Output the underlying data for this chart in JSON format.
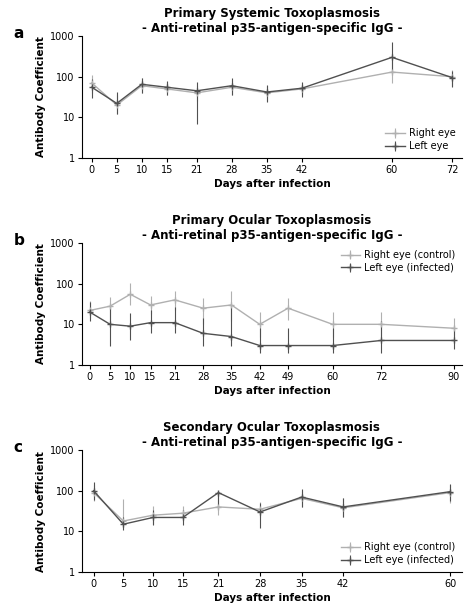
{
  "panel_a": {
    "title1": "Primary Systemic Toxoplasmosis",
    "title2": "- Anti-retinal p35-antigen-specific IgG -",
    "xlabel": "Days after infection",
    "ylabel": "Antibody Coefficient",
    "days": [
      0,
      5,
      10,
      15,
      21,
      28,
      35,
      42,
      60,
      72
    ],
    "right_eye": [
      70,
      20,
      60,
      50,
      40,
      55,
      40,
      50,
      130,
      100
    ],
    "right_eye_err_lo": [
      30,
      8,
      20,
      15,
      15,
      20,
      15,
      15,
      60,
      40
    ],
    "right_eye_err_hi": [
      40,
      15,
      35,
      25,
      20,
      30,
      20,
      20,
      250,
      50
    ],
    "left_eye": [
      55,
      22,
      65,
      55,
      45,
      60,
      42,
      52,
      300,
      95
    ],
    "left_eye_err_lo": [
      25,
      10,
      25,
      20,
      38,
      25,
      18,
      20,
      180,
      40
    ],
    "left_eye_err_hi": [
      35,
      20,
      30,
      25,
      30,
      35,
      22,
      22,
      400,
      45
    ],
    "legend_right": "Right eye",
    "legend_left": "Left eye",
    "legend_loc": "lower right"
  },
  "panel_b": {
    "title1": "Primary Ocular Toxoplasmosis",
    "title2": "- Anti-retinal p35-antigen-specific IgG -",
    "xlabel": "Days after infection",
    "ylabel": "Antibody Coefficient",
    "days": [
      0,
      5,
      10,
      15,
      21,
      28,
      35,
      42,
      49,
      60,
      72,
      90
    ],
    "right_eye": [
      22,
      28,
      55,
      30,
      40,
      25,
      30,
      10,
      25,
      10,
      10,
      8
    ],
    "right_eye_err_lo": [
      8,
      15,
      25,
      12,
      18,
      15,
      18,
      5,
      12,
      5,
      5,
      3
    ],
    "right_eye_err_hi": [
      15,
      20,
      50,
      20,
      25,
      20,
      35,
      10,
      20,
      10,
      10,
      6
    ],
    "left_eye": [
      20,
      10,
      9,
      11,
      11,
      6,
      5,
      3,
      3,
      3,
      4,
      4
    ],
    "left_eye_err_lo": [
      8,
      7,
      5,
      5,
      5,
      3,
      2,
      1,
      1,
      1,
      2,
      1.5
    ],
    "left_eye_err_hi": [
      15,
      20,
      10,
      12,
      15,
      8,
      25,
      5,
      5,
      5,
      8,
      5
    ],
    "legend_right": "Right eye (control)",
    "legend_left": "Left eye (infected)",
    "legend_loc": "upper right"
  },
  "panel_c": {
    "title1": "Secondary Ocular Toxoplasmosis",
    "title2": "- Anti-retinal p35-antigen-specific IgG -",
    "xlabel": "Days after infection",
    "ylabel": "Antibody Coefficient",
    "days": [
      0,
      5,
      10,
      15,
      21,
      28,
      35,
      42,
      60
    ],
    "right_eye": [
      90,
      18,
      25,
      28,
      40,
      35,
      65,
      38,
      90
    ],
    "right_eye_err_lo": [
      35,
      5,
      10,
      10,
      15,
      12,
      25,
      15,
      40
    ],
    "right_eye_err_hi": [
      50,
      45,
      18,
      15,
      60,
      18,
      35,
      30,
      50
    ],
    "left_eye": [
      100,
      15,
      22,
      22,
      90,
      30,
      70,
      40,
      95
    ],
    "left_eye_err_lo": [
      40,
      4,
      8,
      8,
      55,
      18,
      30,
      18,
      40
    ],
    "left_eye_err_hi": [
      60,
      8,
      12,
      12,
      10,
      20,
      40,
      25,
      55
    ],
    "legend_right": "Right eye (control)",
    "legend_left": "Left eye (infected)",
    "legend_loc": "lower right"
  },
  "color_light": "#b0b0b0",
  "color_dark": "#505050",
  "label_fontsize": 7.5,
  "title_fontsize": 8.5,
  "panel_label_fontsize": 11,
  "tick_fontsize": 7
}
